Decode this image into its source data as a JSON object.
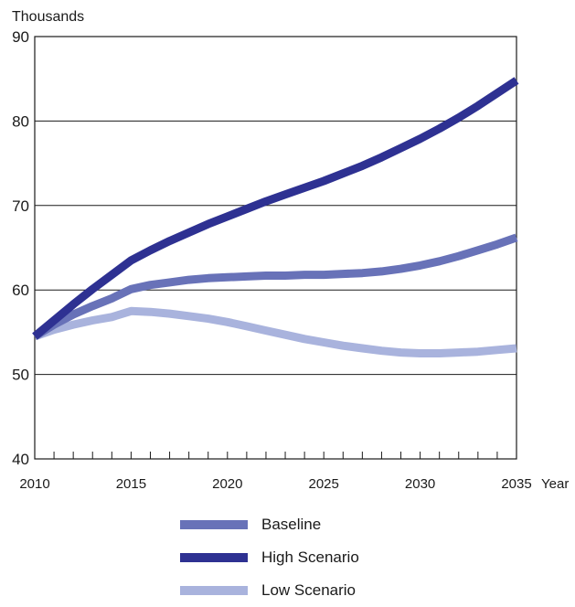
{
  "chart_data": {
    "type": "line",
    "ylabel": "Thousands",
    "xlabel": "Year",
    "ylim": [
      40,
      90
    ],
    "xlim": [
      2010,
      2035
    ],
    "y_ticks": [
      40,
      50,
      60,
      70,
      80,
      90
    ],
    "x_tick_labels": [
      2010,
      2015,
      2020,
      2025,
      2030,
      2035
    ],
    "grid": "horizontal",
    "legend_position": "bottom",
    "series": [
      {
        "name": "Baseline",
        "color": "#6872b8",
        "x": [
          2010,
          2011,
          2012,
          2013,
          2014,
          2015,
          2016,
          2017,
          2018,
          2019,
          2020,
          2021,
          2022,
          2023,
          2024,
          2025,
          2026,
          2027,
          2028,
          2029,
          2030,
          2031,
          2032,
          2033,
          2034,
          2035
        ],
        "values": [
          54.5,
          55.9,
          57.1,
          58.1,
          59.0,
          60.1,
          60.6,
          60.9,
          61.2,
          61.4,
          61.5,
          61.6,
          61.7,
          61.7,
          61.8,
          61.8,
          61.9,
          62.0,
          62.2,
          62.5,
          62.9,
          63.4,
          64.0,
          64.7,
          65.4,
          66.2
        ]
      },
      {
        "name": "High Scenario",
        "color": "#2e3192",
        "x": [
          2010,
          2011,
          2012,
          2013,
          2014,
          2015,
          2016,
          2017,
          2018,
          2019,
          2020,
          2021,
          2022,
          2023,
          2024,
          2025,
          2026,
          2027,
          2028,
          2029,
          2030,
          2031,
          2032,
          2033,
          2034,
          2035
        ],
        "values": [
          54.5,
          56.4,
          58.3,
          60.1,
          61.8,
          63.5,
          64.7,
          65.8,
          66.8,
          67.8,
          68.7,
          69.6,
          70.5,
          71.3,
          72.1,
          72.9,
          73.8,
          74.7,
          75.7,
          76.8,
          77.9,
          79.1,
          80.4,
          81.8,
          83.3,
          84.8
        ]
      },
      {
        "name": "Low Scenario",
        "color": "#a9b3dd",
        "x": [
          2010,
          2011,
          2012,
          2013,
          2014,
          2015,
          2016,
          2017,
          2018,
          2019,
          2020,
          2021,
          2022,
          2023,
          2024,
          2025,
          2026,
          2027,
          2028,
          2029,
          2030,
          2031,
          2032,
          2033,
          2034,
          2035
        ],
        "values": [
          54.5,
          55.3,
          55.9,
          56.4,
          56.8,
          57.5,
          57.4,
          57.2,
          56.9,
          56.6,
          56.2,
          55.7,
          55.2,
          54.7,
          54.2,
          53.8,
          53.4,
          53.1,
          52.8,
          52.6,
          52.5,
          52.5,
          52.6,
          52.7,
          52.9,
          53.1
        ]
      }
    ]
  }
}
